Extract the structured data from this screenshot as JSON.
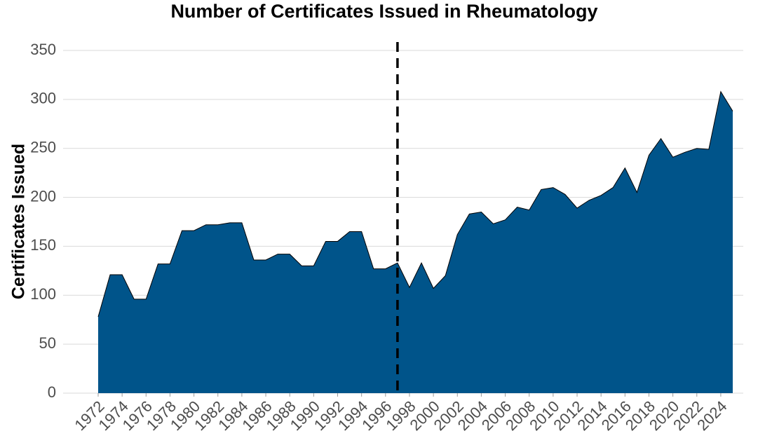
{
  "chart_data": {
    "type": "area",
    "title": "Number of Certificates Issued in Rheumatology",
    "ylabel": "Certificates Issued",
    "x": [
      1972,
      1973,
      1974,
      1975,
      1976,
      1977,
      1978,
      1979,
      1980,
      1981,
      1982,
      1983,
      1984,
      1985,
      1986,
      1987,
      1988,
      1989,
      1990,
      1991,
      1992,
      1993,
      1994,
      1995,
      1996,
      1997,
      1998,
      1999,
      2000,
      2001,
      2002,
      2003,
      2004,
      2005,
      2006,
      2007,
      2008,
      2009,
      2010,
      2011,
      2012,
      2013,
      2014,
      2015,
      2016,
      2017,
      2018,
      2019,
      2020,
      2021,
      2022,
      2023,
      2024,
      2025
    ],
    "values": [
      78,
      121,
      121,
      96,
      96,
      132,
      132,
      166,
      166,
      172,
      172,
      174,
      174,
      136,
      136,
      142,
      142,
      130,
      130,
      155,
      155,
      165,
      165,
      127,
      127,
      133,
      108,
      133,
      107,
      120,
      162,
      183,
      185,
      173,
      177,
      190,
      187,
      208,
      210,
      203,
      189,
      197,
      202,
      210,
      230,
      205,
      243,
      260,
      241,
      246,
      250,
      249,
      308,
      288
    ],
    "color": "#00548a",
    "xlim": [
      1972,
      2025
    ],
    "xticks": [
      1972,
      1974,
      1976,
      1978,
      1980,
      1982,
      1984,
      1986,
      1988,
      1990,
      1992,
      1994,
      1996,
      1998,
      2000,
      2002,
      2004,
      2006,
      2008,
      2010,
      2012,
      2014,
      2016,
      2018,
      2020,
      2022,
      2024
    ],
    "ylim": [
      0,
      350
    ],
    "yticks": [
      0,
      50,
      100,
      150,
      200,
      250,
      300,
      350
    ],
    "grid": true,
    "reference_line_x": 1997
  }
}
